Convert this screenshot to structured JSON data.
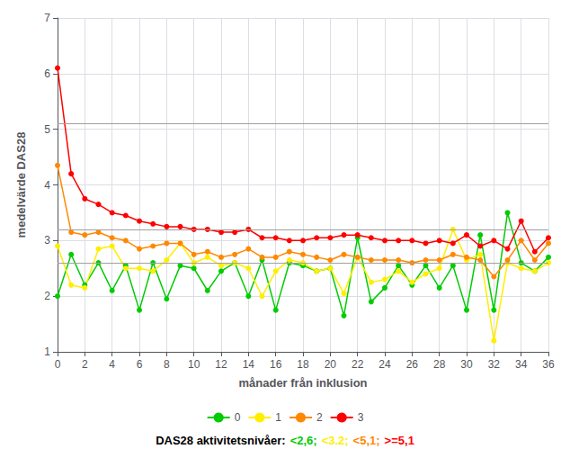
{
  "chart_data": {
    "type": "line",
    "xlabel": "månader från inklusion",
    "ylabel": "medelvärde DAS28",
    "subtitle": "DAS28 aktivitetsnivåer:",
    "subtitle_parts": [
      {
        "text": "<2,6;",
        "color": "#00cc00"
      },
      {
        "text": "<3.2;",
        "color": "#ffee00"
      },
      {
        "text": "<5,1;",
        "color": "#ff8800"
      },
      {
        "text": ">=5,1",
        "color": "#ff0000"
      }
    ],
    "x": [
      0,
      1,
      2,
      3,
      4,
      5,
      6,
      7,
      8,
      9,
      10,
      11,
      12,
      13,
      14,
      15,
      16,
      17,
      18,
      19,
      20,
      21,
      22,
      23,
      24,
      25,
      26,
      27,
      28,
      29,
      30,
      31,
      32,
      33,
      34,
      35,
      36
    ],
    "series": [
      {
        "name": "0",
        "color": "#00cc00",
        "values": [
          2.0,
          2.75,
          2.2,
          2.6,
          2.1,
          2.55,
          1.75,
          2.6,
          1.95,
          2.55,
          2.5,
          2.1,
          2.45,
          2.6,
          2.0,
          2.65,
          1.75,
          2.6,
          2.55,
          2.45,
          2.5,
          1.65,
          3.05,
          1.9,
          2.15,
          2.55,
          2.2,
          2.55,
          2.15,
          2.55,
          1.75,
          3.1,
          1.75,
          3.5,
          2.6,
          2.45,
          2.7
        ]
      },
      {
        "name": "1",
        "color": "#ffee00",
        "values": [
          2.9,
          2.2,
          2.15,
          2.85,
          2.9,
          2.5,
          2.5,
          2.45,
          2.65,
          2.95,
          2.6,
          2.7,
          2.55,
          2.6,
          2.5,
          2.0,
          2.45,
          2.65,
          2.6,
          2.45,
          2.5,
          2.05,
          2.7,
          2.25,
          2.3,
          2.45,
          2.25,
          2.4,
          2.5,
          3.2,
          2.65,
          2.75,
          1.2,
          2.6,
          2.5,
          2.45,
          2.6
        ]
      },
      {
        "name": "2",
        "color": "#ff8800",
        "values": [
          4.35,
          3.15,
          3.1,
          3.15,
          3.05,
          3.0,
          2.85,
          2.9,
          2.95,
          2.95,
          2.75,
          2.8,
          2.7,
          2.75,
          2.85,
          2.7,
          2.7,
          2.8,
          2.75,
          2.7,
          2.65,
          2.75,
          2.7,
          2.65,
          2.65,
          2.65,
          2.6,
          2.65,
          2.65,
          2.75,
          2.7,
          2.65,
          2.35,
          2.65,
          3.0,
          2.65,
          2.95
        ]
      },
      {
        "name": "3",
        "color": "#ff0000",
        "values": [
          6.1,
          4.2,
          3.75,
          3.65,
          3.5,
          3.45,
          3.35,
          3.3,
          3.25,
          3.25,
          3.2,
          3.2,
          3.15,
          3.15,
          3.2,
          3.05,
          3.05,
          3.0,
          3.0,
          3.05,
          3.05,
          3.1,
          3.1,
          3.05,
          3.0,
          3.0,
          3.0,
          2.95,
          3.0,
          2.95,
          3.1,
          2.9,
          3.0,
          2.85,
          3.35,
          2.8,
          3.05
        ]
      }
    ],
    "reference_lines": {
      "values": [
        2.6,
        3.2,
        5.1
      ],
      "color": "#a0a0a0"
    },
    "xlim": [
      0,
      36
    ],
    "xticks": [
      0,
      2,
      4,
      6,
      8,
      10,
      12,
      14,
      16,
      18,
      20,
      22,
      24,
      26,
      28,
      30,
      32,
      34,
      36
    ],
    "ylim": [
      1,
      7
    ],
    "yticks": [
      1,
      2,
      3,
      4,
      5,
      6,
      7
    ],
    "grid": true,
    "legend": "bottom",
    "marker": "circle",
    "line_style": "solid"
  }
}
